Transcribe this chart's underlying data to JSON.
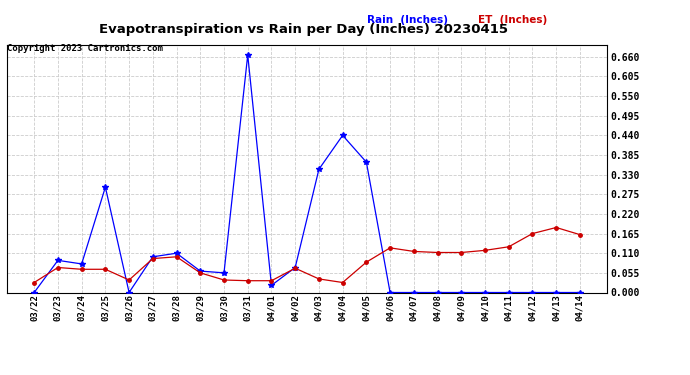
{
  "title": "Evapotranspiration vs Rain per Day (Inches) 20230415",
  "copyright": "Copyright 2023 Cartronics.com",
  "legend_rain": "Rain  (Inches)",
  "legend_et": "ET  (Inches)",
  "x_labels": [
    "03/22",
    "03/23",
    "03/24",
    "03/25",
    "03/26",
    "03/27",
    "03/28",
    "03/29",
    "03/30",
    "03/31",
    "04/01",
    "04/02",
    "04/03",
    "04/04",
    "04/05",
    "04/06",
    "04/07",
    "04/08",
    "04/09",
    "04/10",
    "04/11",
    "04/12",
    "04/13",
    "04/14"
  ],
  "rain": [
    0.0,
    0.09,
    0.08,
    0.295,
    0.0,
    0.1,
    0.11,
    0.06,
    0.055,
    0.665,
    0.02,
    0.07,
    0.345,
    0.44,
    0.365,
    0.0,
    0.0,
    0.0,
    0.0,
    0.0,
    0.0,
    0.0,
    0.0,
    0.0
  ],
  "et": [
    0.028,
    0.07,
    0.065,
    0.065,
    0.035,
    0.095,
    0.1,
    0.055,
    0.035,
    0.033,
    0.033,
    0.068,
    0.038,
    0.028,
    0.085,
    0.125,
    0.115,
    0.112,
    0.112,
    0.118,
    0.128,
    0.165,
    0.182,
    0.162
  ],
  "rain_color": "#0000ff",
  "et_color": "#cc0000",
  "grid_color": "#cccccc",
  "background_color": "#ffffff",
  "ylim": [
    0.0,
    0.693
  ],
  "yticks": [
    0.0,
    0.055,
    0.11,
    0.165,
    0.22,
    0.275,
    0.33,
    0.385,
    0.44,
    0.495,
    0.55,
    0.605,
    0.66
  ]
}
